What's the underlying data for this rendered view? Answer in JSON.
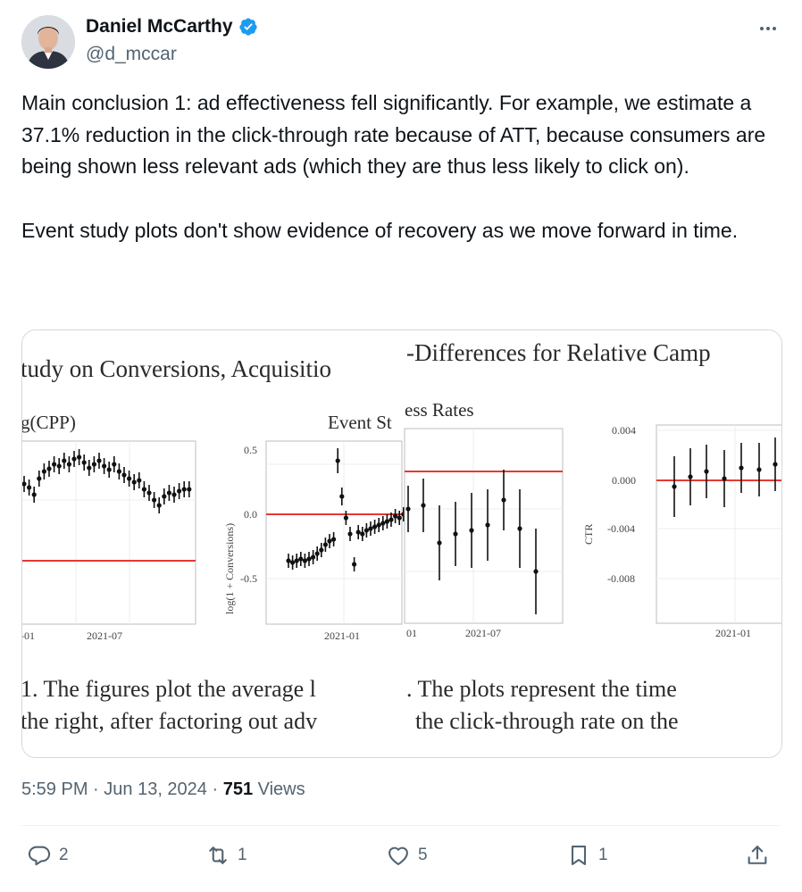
{
  "author": {
    "name": "Daniel McCarthy",
    "handle": "@d_mccar"
  },
  "tweet": {
    "paragraph1": "Main conclusion 1: ad effectiveness fell significantly. For example, we estimate a 37.1% reduction in the click-through rate because of ATT, because consumers are being shown less relevant ads (which they are thus less likely to click on).",
    "paragraph2": "Event study plots don't show evidence of recovery as we move forward in time."
  },
  "media": {
    "heading_left": "tudy on Conversions, Acquisitio",
    "heading_right": "-Differences for Relative Camp",
    "panel1_label": "g(CPP)",
    "panel2_label": "Event St",
    "panel3_label": "ess Rates",
    "panel2_ylabel": "log(1 + Conversions)",
    "panel4_ylabel": "CTR",
    "caption_line1_left": "1.  The figures plot the average l",
    "caption_line1_right": ".  The plots represent the time",
    "caption_line2_left": "the right, after factoring out adv",
    "caption_line2_right": "the click-through rate on the",
    "ticks": {
      "p1_x1": "-01",
      "p1_x2": "2021-07",
      "p2_y1": "0.5",
      "p2_y2": "0.0",
      "p2_y3": "-0.5",
      "p2_x1": "2021-01",
      "p3_x1": "01",
      "p3_x2": "2021-07",
      "p4_y1": "0.004",
      "p4_y2": "0.000",
      "p4_y3": "-0.004",
      "p4_y4": "-0.008",
      "p4_x1": "2021-01"
    }
  },
  "meta": {
    "time": "5:59 PM",
    "sep1": " · ",
    "date": "Jun 13, 2024",
    "sep2": " · ",
    "views_count": "751",
    "views_label": " Views"
  },
  "actions": {
    "replies": "2",
    "reposts": "1",
    "likes": "5",
    "bookmarks": "1"
  },
  "colors": {
    "text": "#0f1419",
    "secondary": "#536471",
    "verified": "#1d9bf0",
    "zero_line": "#e53935"
  }
}
